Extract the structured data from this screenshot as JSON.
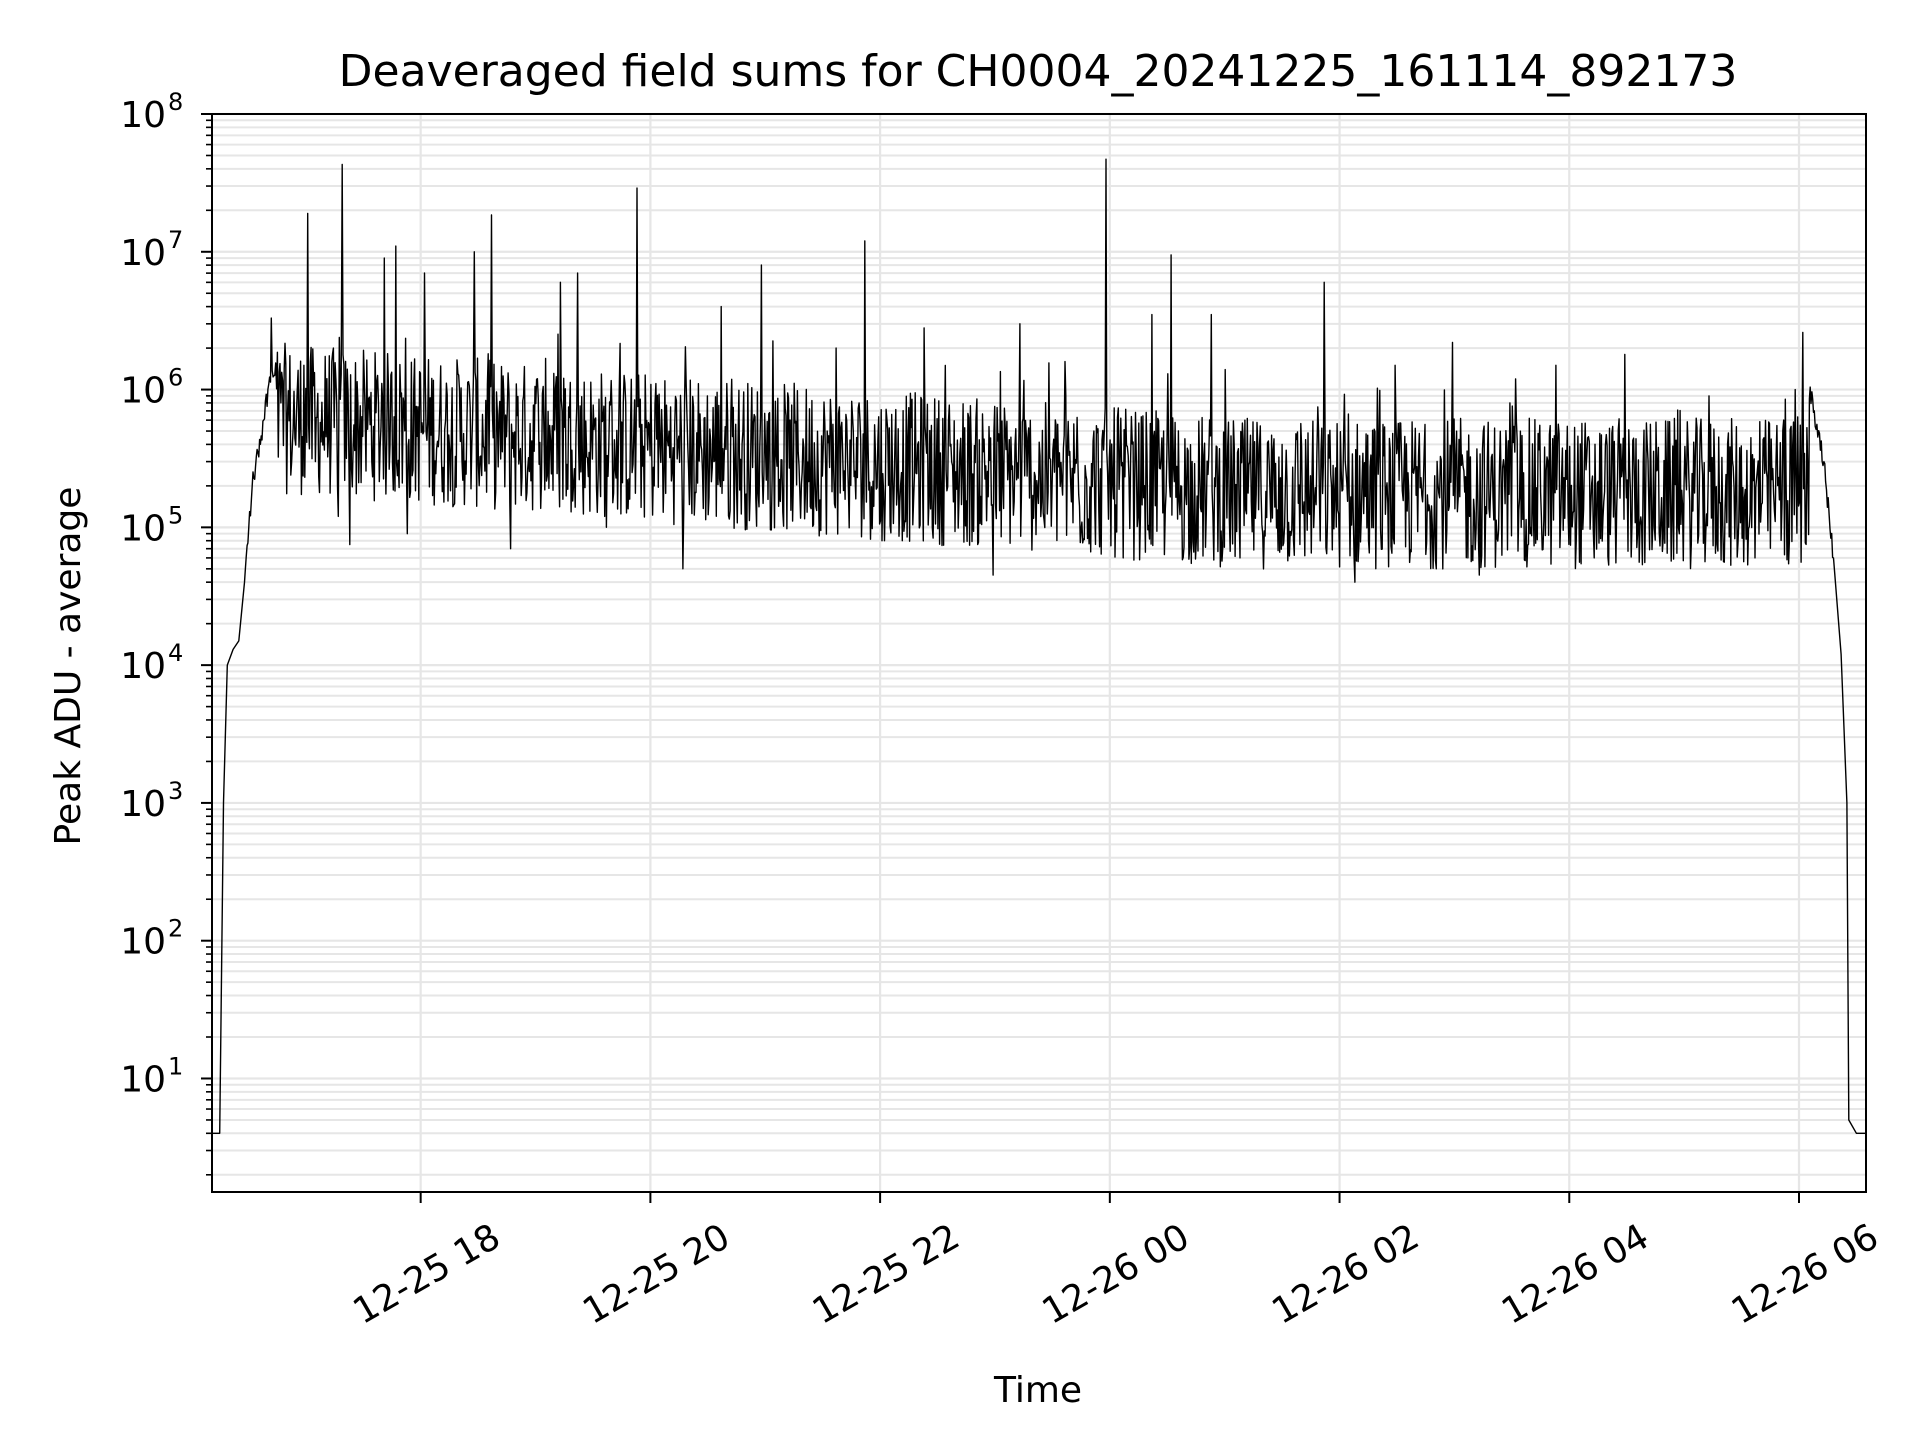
{
  "chart_data": {
    "type": "line",
    "title": "Deaveraged field sums for CH0004_20241225_161114_892173",
    "xlabel": "Time",
    "ylabel": "Peak ADU - average",
    "yscale": "log",
    "ylim": [
      1.5,
      100000000
    ],
    "xlim": [
      "2024-12-25 16:11",
      "2024-12-26 06:35"
    ],
    "grid": true,
    "line_color": "#000000",
    "grid_color": "#e6e6e6",
    "x_ticks": [
      {
        "label": "12-25 18",
        "value": "2024-12-25 18:00"
      },
      {
        "label": "12-25 20",
        "value": "2024-12-25 20:00"
      },
      {
        "label": "12-25 22",
        "value": "2024-12-25 22:00"
      },
      {
        "label": "12-26 00",
        "value": "2024-12-26 00:00"
      },
      {
        "label": "12-26 02",
        "value": "2024-12-26 02:00"
      },
      {
        "label": "12-26 04",
        "value": "2024-12-26 04:00"
      },
      {
        "label": "12-26 06",
        "value": "2024-12-26 06:00"
      }
    ],
    "y_ticks": [
      {
        "base": "10",
        "exp": "1",
        "value": 10
      },
      {
        "base": "10",
        "exp": "2",
        "value": 100
      },
      {
        "base": "10",
        "exp": "3",
        "value": 1000
      },
      {
        "base": "10",
        "exp": "4",
        "value": 10000
      },
      {
        "base": "10",
        "exp": "5",
        "value": 100000
      },
      {
        "base": "10",
        "exp": "6",
        "value": 1000000
      },
      {
        "base": "10",
        "exp": "7",
        "value": 10000000
      },
      {
        "base": "10",
        "exp": "8",
        "value": 100000000
      }
    ],
    "series": [
      {
        "points": [
          [
            "2024-12-25 16:11",
            4
          ],
          [
            "2024-12-25 16:13",
            4
          ],
          [
            "2024-12-25 16:15",
            4
          ],
          [
            "2024-12-25 16:17",
            1000
          ],
          [
            "2024-12-25 16:19",
            10000
          ],
          [
            "2024-12-25 16:22",
            13000
          ],
          [
            "2024-12-25 16:25",
            15000
          ],
          [
            "2024-12-25 16:28",
            40000
          ],
          [
            "2024-12-25 16:32",
            200000
          ],
          [
            "2024-12-25 16:38",
            600000
          ],
          [
            "2024-12-25 16:42",
            3300000
          ],
          [
            "2024-12-25 16:47",
            800000
          ],
          [
            "2024-12-25 16:53",
            400000
          ],
          [
            "2024-12-25 16:59",
            1500000
          ],
          [
            "2024-12-25 17:01",
            19000000
          ],
          [
            "2024-12-25 17:05",
            300000
          ],
          [
            "2024-12-25 17:11",
            1200000
          ],
          [
            "2024-12-25 17:17",
            120000
          ],
          [
            "2024-12-25 17:19",
            43000000
          ],
          [
            "2024-12-25 17:23",
            75000
          ],
          [
            "2024-12-25 17:31",
            700000
          ],
          [
            "2024-12-25 17:41",
            9000000
          ],
          [
            "2024-12-25 17:47",
            11000000
          ],
          [
            "2024-12-25 17:53",
            90000
          ],
          [
            "2024-12-25 18:02",
            7000000
          ],
          [
            "2024-12-25 18:13",
            600000
          ],
          [
            "2024-12-25 18:28",
            10000000
          ],
          [
            "2024-12-25 18:37",
            18500000
          ],
          [
            "2024-12-25 18:47",
            70000
          ],
          [
            "2024-12-25 19:01",
            1200000
          ],
          [
            "2024-12-25 19:13",
            6000000
          ],
          [
            "2024-12-25 19:22",
            7000000
          ],
          [
            "2024-12-25 19:37",
            100000
          ],
          [
            "2024-12-25 19:53",
            29000000
          ],
          [
            "2024-12-25 20:02",
            200000
          ],
          [
            "2024-12-25 20:17",
            50000
          ],
          [
            "2024-12-25 20:37",
            4000000
          ],
          [
            "2024-12-25 20:58",
            8000000
          ],
          [
            "2024-12-25 21:13",
            600000
          ],
          [
            "2024-12-25 21:37",
            2000000
          ],
          [
            "2024-12-25 21:52",
            12000000
          ],
          [
            "2024-12-25 22:01",
            80000
          ],
          [
            "2024-12-25 22:23",
            2800000
          ],
          [
            "2024-12-25 22:37",
            400000
          ],
          [
            "2024-12-25 22:59",
            45000
          ],
          [
            "2024-12-25 23:13",
            3000000
          ],
          [
            "2024-12-25 23:37",
            900000
          ],
          [
            "2024-12-25 23:58",
            47000000
          ],
          [
            "2024-12-26 00:07",
            60000
          ],
          [
            "2024-12-26 00:22",
            3500000
          ],
          [
            "2024-12-26 00:32",
            9500000
          ],
          [
            "2024-12-26 00:43",
            300000
          ],
          [
            "2024-12-26 00:53",
            3500000
          ],
          [
            "2024-12-26 01:08",
            60000
          ],
          [
            "2024-12-26 01:30",
            400000
          ],
          [
            "2024-12-26 01:52",
            6000000
          ],
          [
            "2024-12-26 02:08",
            40000
          ],
          [
            "2024-12-26 02:29",
            1500000
          ],
          [
            "2024-12-26 02:59",
            2200000
          ],
          [
            "2024-12-26 03:13",
            45000
          ],
          [
            "2024-12-26 03:29",
            800000
          ],
          [
            "2024-12-26 03:53",
            1500000
          ],
          [
            "2024-12-26 04:13",
            60000
          ],
          [
            "2024-12-26 04:29",
            1800000
          ],
          [
            "2024-12-26 04:52",
            100000
          ],
          [
            "2024-12-26 05:13",
            900000
          ],
          [
            "2024-12-26 05:37",
            60000
          ],
          [
            "2024-12-26 05:48",
            300000
          ],
          [
            "2024-12-26 05:52",
            600000
          ],
          [
            "2024-12-26 05:58",
            1000000
          ],
          [
            "2024-12-26 06:02",
            2600000
          ],
          [
            "2024-12-26 06:08",
            700000
          ],
          [
            "2024-12-26 06:13",
            300000
          ],
          [
            "2024-12-26 06:18",
            60000
          ],
          [
            "2024-12-26 06:22",
            12000
          ],
          [
            "2024-12-26 06:25",
            1000
          ],
          [
            "2024-12-26 06:26",
            5
          ],
          [
            "2024-12-26 06:30",
            4
          ],
          [
            "2024-12-26 06:35",
            4
          ]
        ]
      }
    ]
  }
}
